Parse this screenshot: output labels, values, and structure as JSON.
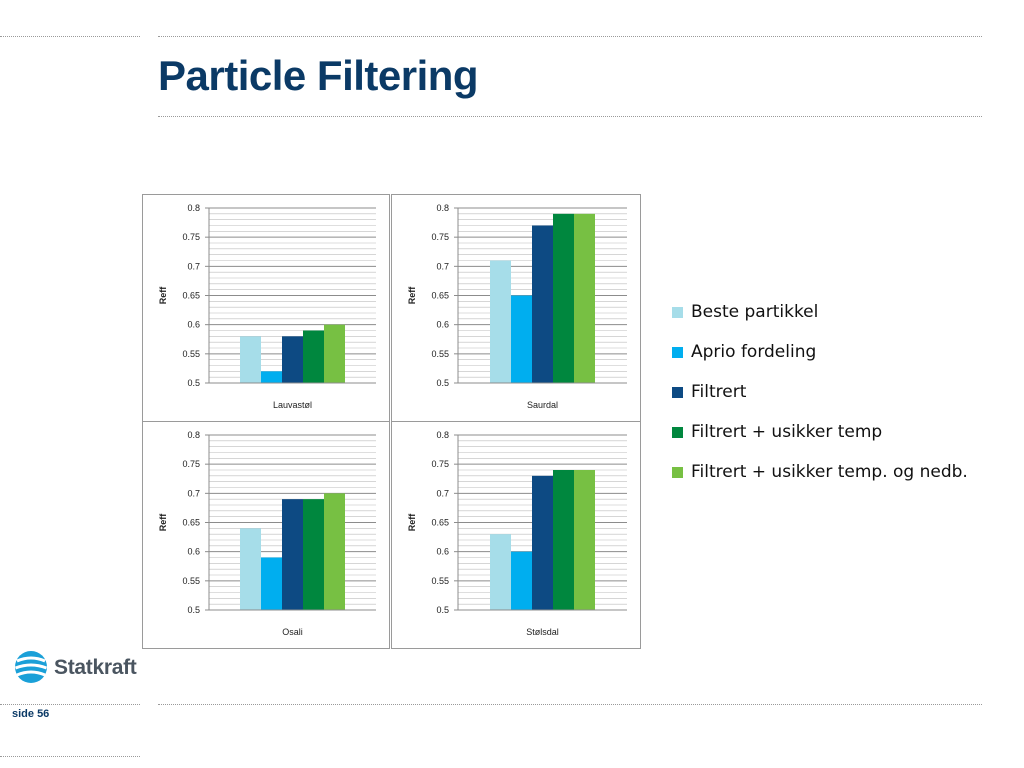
{
  "slide": {
    "title": "Particle Filtering",
    "page_label": "side 56",
    "logo_text": "Statkraft"
  },
  "legend": [
    {
      "label": "Beste partikkel",
      "color": "#a6dde9"
    },
    {
      "label": "Aprio fordeling",
      "color": "#00aeef"
    },
    {
      "label": "Filtrert",
      "color": "#0d4a83"
    },
    {
      "label": "Filtrert + usikker temp",
      "color": "#00873e"
    },
    {
      "label": "Filtrert + usikker temp.  og nedb.",
      "color": "#77c043"
    }
  ],
  "chart_data": [
    {
      "type": "bar",
      "categories": [
        "Lauvastøl"
      ],
      "ylabel": "Reff",
      "ylim": [
        0.5,
        0.8
      ],
      "yticks": [
        "0.5",
        "0.55",
        "0.6",
        "0.65",
        "0.7",
        "0.75",
        "0.8"
      ],
      "series": [
        {
          "name": "Beste partikkel",
          "values": [
            0.58
          ]
        },
        {
          "name": "Aprio fordeling",
          "values": [
            0.52
          ]
        },
        {
          "name": "Filtrert",
          "values": [
            0.58
          ]
        },
        {
          "name": "Filtrert + usikker temp",
          "values": [
            0.59
          ]
        },
        {
          "name": "Filtrert + usikker temp.  og nedb.",
          "values": [
            0.6
          ]
        }
      ]
    },
    {
      "type": "bar",
      "categories": [
        "Saurdal"
      ],
      "ylabel": "Reff",
      "ylim": [
        0.5,
        0.8
      ],
      "yticks": [
        "0.5",
        "0.55",
        "0.6",
        "0.65",
        "0.7",
        "0.75",
        "0.8"
      ],
      "series": [
        {
          "name": "Beste partikkel",
          "values": [
            0.71
          ]
        },
        {
          "name": "Aprio fordeling",
          "values": [
            0.65
          ]
        },
        {
          "name": "Filtrert",
          "values": [
            0.77
          ]
        },
        {
          "name": "Filtrert + usikker temp",
          "values": [
            0.79
          ]
        },
        {
          "name": "Filtrert + usikker temp.  og nedb.",
          "values": [
            0.79
          ]
        }
      ]
    },
    {
      "type": "bar",
      "categories": [
        "Osali"
      ],
      "ylabel": "Reff",
      "ylim": [
        0.5,
        0.8
      ],
      "yticks": [
        "0.5",
        "0.55",
        "0.6",
        "0.65",
        "0.7",
        "0.75",
        "0.8"
      ],
      "series": [
        {
          "name": "Beste partikkel",
          "values": [
            0.64
          ]
        },
        {
          "name": "Aprio fordeling",
          "values": [
            0.59
          ]
        },
        {
          "name": "Filtrert",
          "values": [
            0.69
          ]
        },
        {
          "name": "Filtrert + usikker temp",
          "values": [
            0.69
          ]
        },
        {
          "name": "Filtrert + usikker temp.  og nedb.",
          "values": [
            0.7
          ]
        }
      ]
    },
    {
      "type": "bar",
      "categories": [
        "Stølsdal"
      ],
      "ylabel": "Reff",
      "ylim": [
        0.5,
        0.8
      ],
      "yticks": [
        "0.5",
        "0.55",
        "0.6",
        "0.65",
        "0.7",
        "0.75",
        "0.8"
      ],
      "series": [
        {
          "name": "Beste partikkel",
          "values": [
            0.63
          ]
        },
        {
          "name": "Aprio fordeling",
          "values": [
            0.6
          ]
        },
        {
          "name": "Filtrert",
          "values": [
            0.73
          ]
        },
        {
          "name": "Filtrert + usikker temp",
          "values": [
            0.74
          ]
        },
        {
          "name": "Filtrert + usikker temp.  og nedb.",
          "values": [
            0.74
          ]
        }
      ]
    }
  ]
}
